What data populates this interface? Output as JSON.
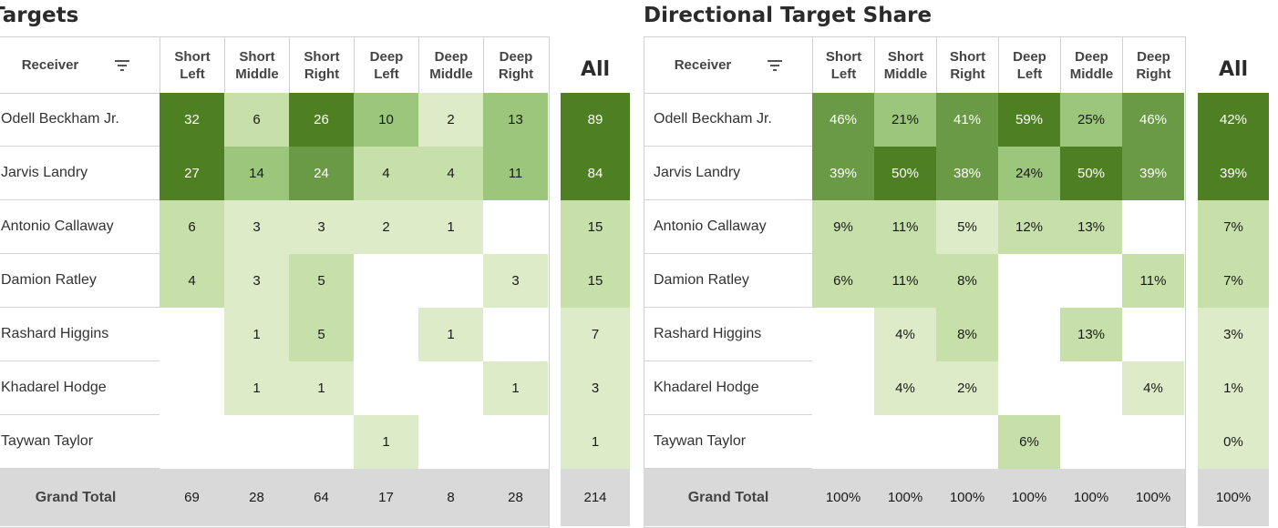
{
  "left_title": "Targets",
  "right_title": "Directional Target Share",
  "receiver_header": "Receiver",
  "all_header": "All",
  "grand_total_label": "Grand Total",
  "columns": [
    [
      "Short",
      "Left"
    ],
    [
      "Short",
      "Middle"
    ],
    [
      "Short",
      "Right"
    ],
    [
      "Deep",
      "Left"
    ],
    [
      "Deep",
      "Middle"
    ],
    [
      "Deep",
      "Right"
    ]
  ],
  "receivers": [
    "Odell Beckham Jr.",
    "Jarvis Landry",
    "Antonio Callaway",
    "Damion Ratley",
    "Rashard Higgins",
    "Khadarel Hodge",
    "Taywan Taylor"
  ],
  "chart_data": [
    {
      "type": "heatmap",
      "title": "Targets",
      "rows": [
        "Odell Beckham Jr.",
        "Jarvis Landry",
        "Antonio Callaway",
        "Damion Ratley",
        "Rashard Higgins",
        "Khadarel Hodge",
        "Taywan Taylor"
      ],
      "columns": [
        "Short Left",
        "Short Middle",
        "Short Right",
        "Deep Left",
        "Deep Middle",
        "Deep Right"
      ],
      "values": [
        [
          32,
          6,
          26,
          10,
          2,
          13
        ],
        [
          27,
          14,
          24,
          4,
          4,
          11
        ],
        [
          6,
          3,
          3,
          2,
          1,
          null
        ],
        [
          4,
          3,
          5,
          null,
          null,
          3
        ],
        [
          null,
          1,
          5,
          null,
          1,
          null
        ],
        [
          null,
          1,
          1,
          null,
          null,
          1
        ],
        [
          null,
          null,
          null,
          1,
          null,
          null
        ]
      ],
      "all": [
        89,
        84,
        15,
        15,
        7,
        3,
        1
      ],
      "grand_total": [
        69,
        28,
        64,
        17,
        8,
        28
      ],
      "grand_total_all": 214
    },
    {
      "type": "heatmap",
      "title": "Directional Target Share",
      "rows": [
        "Odell Beckham Jr.",
        "Jarvis Landry",
        "Antonio Callaway",
        "Damion Ratley",
        "Rashard Higgins",
        "Khadarel Hodge",
        "Taywan Taylor"
      ],
      "columns": [
        "Short Left",
        "Short Middle",
        "Short Right",
        "Deep Left",
        "Deep Middle",
        "Deep Right"
      ],
      "values": [
        [
          "46%",
          "21%",
          "41%",
          "59%",
          "25%",
          "46%"
        ],
        [
          "39%",
          "50%",
          "38%",
          "24%",
          "50%",
          "39%"
        ],
        [
          "9%",
          "11%",
          "5%",
          "12%",
          "13%",
          null
        ],
        [
          "6%",
          "11%",
          "8%",
          null,
          null,
          "11%"
        ],
        [
          null,
          "4%",
          "8%",
          null,
          "13%",
          null
        ],
        [
          null,
          "4%",
          "2%",
          null,
          null,
          "4%"
        ],
        [
          null,
          null,
          null,
          "6%",
          null,
          null
        ]
      ],
      "all": [
        "42%",
        "39%",
        "7%",
        "7%",
        "3%",
        "1%",
        "0%"
      ],
      "grand_total": [
        "100%",
        "100%",
        "100%",
        "100%",
        "100%",
        "100%"
      ],
      "grand_total_all": "100%"
    }
  ],
  "colors": {
    "darkest": "#4f7f23",
    "dark": "#6a9a45",
    "mid": "#9cc67b",
    "light": "#c7e0a9",
    "lightest": "#ddebc8",
    "grand_total_bg": "#d9d9d9"
  }
}
